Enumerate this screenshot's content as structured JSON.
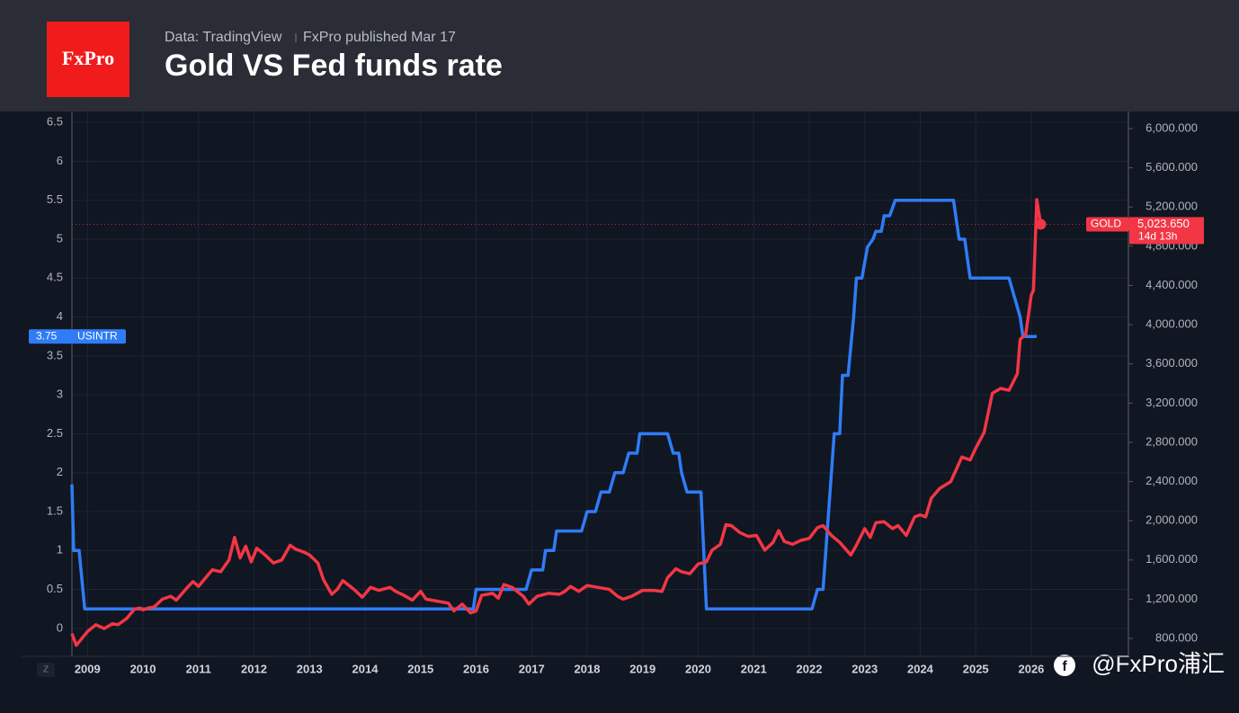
{
  "header": {
    "source": "Data: TradingView",
    "published": "FxPro published Mar 17",
    "logo": "FxPro",
    "watermark": "@FxPro浦汇"
  },
  "chart_data": {
    "type": "line",
    "title": "Gold VS Fed funds rate",
    "grid": true,
    "xlim": [
      2008.72,
      2027.75
    ],
    "xticks": [
      2009,
      2010,
      2011,
      2012,
      2013,
      2014,
      2015,
      2016,
      2017,
      2018,
      2019,
      2020,
      2021,
      2022,
      2023,
      2024,
      2025,
      2026
    ],
    "ylim": [
      -0.36,
      6.64
    ],
    "yticks": [
      0,
      0.5,
      1,
      1.5,
      2,
      2.5,
      3,
      3.5,
      4,
      4.5,
      5,
      5.5,
      6,
      6.5
    ],
    "y2lim": [
      617,
      6174
    ],
    "y2ticks": [
      {
        "value": 800,
        "label": "800.000"
      },
      {
        "value": 1200,
        "label": "1,200.000"
      },
      {
        "value": 1600,
        "label": "1,600.000"
      },
      {
        "value": 2000,
        "label": "2,000.000"
      },
      {
        "value": 2400,
        "label": "2,400.000"
      },
      {
        "value": 2800,
        "label": "2,800.000"
      },
      {
        "value": 3200,
        "label": "3,200.000"
      },
      {
        "value": 3600,
        "label": "3,600.000"
      },
      {
        "value": 4000,
        "label": "4,000.000"
      },
      {
        "value": 4400,
        "label": "4,400.000"
      },
      {
        "value": 4800,
        "label": "4,800.000"
      },
      {
        "value": 5200,
        "label": "5,200.000"
      },
      {
        "value": 5600,
        "label": "5,600.000"
      },
      {
        "value": 6000,
        "label": "6,000.000"
      }
    ],
    "series": [
      {
        "name": "USINTR",
        "color": "#2f7cf6",
        "axis": "y",
        "x": [
          2008.72,
          2008.75,
          2008.85,
          2008.95,
          2015.95,
          2016.0,
          2016.9,
          2017.0,
          2017.2,
          2017.25,
          2017.4,
          2017.45,
          2017.9,
          2018.0,
          2018.15,
          2018.25,
          2018.4,
          2018.5,
          2018.65,
          2018.75,
          2018.9,
          2018.95,
          2019.45,
          2019.55,
          2019.65,
          2019.7,
          2019.8,
          2020.05,
          2020.15,
          2022.05,
          2022.15,
          2022.25,
          2022.3,
          2022.45,
          2022.55,
          2022.6,
          2022.7,
          2022.8,
          2022.85,
          2022.95,
          2023.05,
          2023.15,
          2023.2,
          2023.3,
          2023.35,
          2023.45,
          2023.55,
          2024.6,
          2024.7,
          2024.8,
          2024.9,
          2025.6,
          2025.8,
          2025.85,
          2026.1
        ],
        "values": [
          1.85,
          1.0,
          1.0,
          0.25,
          0.25,
          0.5,
          0.5,
          0.75,
          0.75,
          1.0,
          1.0,
          1.25,
          1.25,
          1.5,
          1.5,
          1.75,
          1.75,
          2.0,
          2.0,
          2.25,
          2.25,
          2.5,
          2.5,
          2.25,
          2.25,
          2.0,
          1.75,
          1.75,
          0.25,
          0.25,
          0.5,
          0.5,
          1.0,
          2.5,
          2.5,
          3.25,
          3.25,
          4.0,
          4.5,
          4.5,
          4.9,
          5.0,
          5.1,
          5.1,
          5.3,
          5.3,
          5.5,
          5.5,
          5.0,
          5.0,
          4.5,
          4.5,
          4.0,
          3.75,
          3.75
        ]
      },
      {
        "name": "GOLD",
        "color": "#f23645",
        "axis": "y2",
        "countdown": "14d 13h",
        "x": [
          2008.72,
          2008.8,
          2009.0,
          2009.15,
          2009.3,
          2009.45,
          2009.55,
          2009.7,
          2009.85,
          2009.95,
          2010.0,
          2010.1,
          2010.2,
          2010.35,
          2010.5,
          2010.6,
          2010.8,
          2010.9,
          2011.0,
          2011.1,
          2011.25,
          2011.4,
          2011.55,
          2011.65,
          2011.75,
          2011.85,
          2011.95,
          2012.05,
          2012.2,
          2012.35,
          2012.5,
          2012.65,
          2012.75,
          2012.9,
          2013.0,
          2013.15,
          2013.25,
          2013.4,
          2013.5,
          2013.6,
          2013.8,
          2013.95,
          2014.1,
          2014.25,
          2014.45,
          2014.55,
          2014.7,
          2014.85,
          2015.0,
          2015.1,
          2015.3,
          2015.5,
          2015.6,
          2015.75,
          2015.9,
          2016.0,
          2016.1,
          2016.3,
          2016.4,
          2016.5,
          2016.65,
          2016.85,
          2016.95,
          2017.1,
          2017.3,
          2017.5,
          2017.6,
          2017.7,
          2017.85,
          2018.0,
          2018.2,
          2018.4,
          2018.55,
          2018.65,
          2018.8,
          2019.0,
          2019.2,
          2019.35,
          2019.45,
          2019.6,
          2019.7,
          2019.85,
          2020.0,
          2020.15,
          2020.25,
          2020.4,
          2020.5,
          2020.6,
          2020.75,
          2020.9,
          2021.05,
          2021.2,
          2021.35,
          2021.45,
          2021.55,
          2021.7,
          2021.85,
          2022.0,
          2022.15,
          2022.25,
          2022.4,
          2022.55,
          2022.75,
          2022.85,
          2023.0,
          2023.1,
          2023.2,
          2023.35,
          2023.5,
          2023.6,
          2023.75,
          2023.9,
          2024.0,
          2024.1,
          2024.2,
          2024.35,
          2024.55,
          2024.75,
          2024.9,
          2025.0,
          2025.15,
          2025.3,
          2025.45,
          2025.6,
          2025.75,
          2025.8,
          2025.9,
          2026.0,
          2026.04,
          2026.1,
          2026.17
        ],
        "values": [
          850,
          730,
          870,
          940,
          900,
          950,
          940,
          1000,
          1100,
          1110,
          1090,
          1110,
          1120,
          1200,
          1230,
          1190,
          1320,
          1380,
          1330,
          1400,
          1500,
          1480,
          1600,
          1830,
          1620,
          1740,
          1580,
          1720,
          1650,
          1570,
          1600,
          1750,
          1710,
          1680,
          1650,
          1570,
          1400,
          1250,
          1300,
          1390,
          1300,
          1220,
          1320,
          1290,
          1320,
          1280,
          1240,
          1190,
          1280,
          1200,
          1180,
          1160,
          1080,
          1150,
          1060,
          1080,
          1240,
          1260,
          1210,
          1350,
          1320,
          1230,
          1150,
          1230,
          1260,
          1250,
          1280,
          1330,
          1280,
          1340,
          1320,
          1300,
          1230,
          1200,
          1230,
          1290,
          1290,
          1280,
          1420,
          1510,
          1480,
          1460,
          1560,
          1580,
          1700,
          1760,
          1960,
          1950,
          1880,
          1840,
          1850,
          1700,
          1780,
          1900,
          1790,
          1760,
          1800,
          1820,
          1930,
          1950,
          1850,
          1780,
          1650,
          1750,
          1920,
          1830,
          1980,
          1990,
          1920,
          1950,
          1850,
          2040,
          2060,
          2040,
          2230,
          2330,
          2400,
          2650,
          2620,
          2740,
          2900,
          3300,
          3350,
          3330,
          3500,
          3850,
          3900,
          4300,
          4350,
          5275,
          5023.65
        ],
        "value_labels": [
          null,
          null,
          null,
          null,
          null,
          null,
          null,
          null,
          null,
          null,
          null,
          null,
          null,
          null,
          null,
          null,
          null,
          null,
          null,
          null,
          null,
          null,
          null,
          null,
          null,
          null,
          null,
          null,
          null,
          null,
          null,
          null,
          null,
          null,
          null,
          null,
          null,
          null,
          null,
          null,
          null,
          null,
          null,
          null,
          null,
          null,
          null,
          null,
          null,
          null,
          null,
          null,
          null,
          null,
          null,
          null,
          null,
          null,
          null,
          null,
          null,
          null,
          null,
          null,
          null,
          null,
          null,
          null,
          null,
          null,
          null,
          null,
          null,
          null,
          null,
          null,
          null,
          null,
          null,
          null,
          null,
          null,
          null,
          null,
          null,
          null,
          null,
          null,
          null,
          null,
          null,
          null,
          null,
          null,
          null,
          null,
          null,
          null,
          null,
          null,
          null,
          null,
          null,
          null,
          null,
          null,
          null,
          null,
          null,
          null,
          null,
          null,
          null,
          null,
          null,
          null,
          null,
          null,
          null,
          null,
          null,
          null,
          null,
          null,
          null,
          null,
          null,
          null,
          null,
          null,
          "5,023.650"
        ]
      }
    ]
  }
}
